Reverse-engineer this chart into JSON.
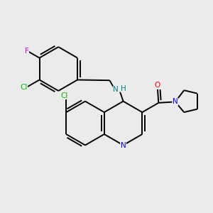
{
  "background_color": "#ebebeb",
  "atom_colors": {
    "C": "#000000",
    "N_blue": "#0000ff",
    "N_nh": "#008080",
    "O": "#ff0000",
    "Cl": "#00bb00",
    "F": "#dd00dd"
  },
  "bond_color": "#000000",
  "bond_width": 1.4,
  "figsize": [
    3.0,
    3.0
  ],
  "dpi": 100,
  "xlim": [
    0,
    10
  ],
  "ylim": [
    0,
    10
  ]
}
